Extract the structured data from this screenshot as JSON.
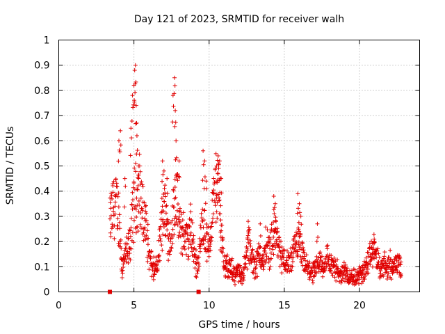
{
  "chart_data": {
    "type": "scatter",
    "title": "Day 121 of 2023, SRMTID for receiver walh",
    "xlabel": "GPS time / hours",
    "ylabel": "SRMTID / TECUs",
    "xlim": [
      0,
      24
    ],
    "ylim": [
      0,
      1
    ],
    "xticks": [
      0,
      5,
      10,
      15,
      20
    ],
    "xtick_labels": [
      "0",
      "5",
      "10",
      "15",
      "20"
    ],
    "yticks": [
      0,
      0.1,
      0.2,
      0.3,
      0.4,
      0.5,
      0.6,
      0.7,
      0.8,
      0.9,
      1
    ],
    "ytick_labels": [
      "0",
      "0.1",
      "0.2",
      "0.3",
      "0.4",
      "0.5",
      "0.6",
      "0.7",
      "0.8",
      "0.9",
      "1"
    ],
    "grid": true,
    "marker": "+",
    "color": "#e00000",
    "zero_markers_x": [
      3.4,
      9.3
    ],
    "trend": [
      [
        3.4,
        0.27
      ],
      [
        3.6,
        0.33
      ],
      [
        3.8,
        0.35
      ],
      [
        4.0,
        0.3
      ],
      [
        4.2,
        0.1
      ],
      [
        4.4,
        0.14
      ],
      [
        4.6,
        0.16
      ],
      [
        4.8,
        0.22
      ],
      [
        5.0,
        0.36
      ],
      [
        5.2,
        0.38
      ],
      [
        5.4,
        0.41
      ],
      [
        5.6,
        0.3
      ],
      [
        5.8,
        0.27
      ],
      [
        6.0,
        0.15
      ],
      [
        6.2,
        0.1
      ],
      [
        6.4,
        0.08
      ],
      [
        6.6,
        0.12
      ],
      [
        6.8,
        0.25
      ],
      [
        7.0,
        0.35
      ],
      [
        7.2,
        0.26
      ],
      [
        7.4,
        0.2
      ],
      [
        7.6,
        0.3
      ],
      [
        7.8,
        0.42
      ],
      [
        8.0,
        0.25
      ],
      [
        8.2,
        0.24
      ],
      [
        8.4,
        0.22
      ],
      [
        8.6,
        0.2
      ],
      [
        8.8,
        0.26
      ],
      [
        9.0,
        0.15
      ],
      [
        9.2,
        0.1
      ],
      [
        9.4,
        0.18
      ],
      [
        9.6,
        0.3
      ],
      [
        9.8,
        0.2
      ],
      [
        10.0,
        0.18
      ],
      [
        10.2,
        0.3
      ],
      [
        10.4,
        0.4
      ],
      [
        10.6,
        0.42
      ],
      [
        10.8,
        0.25
      ],
      [
        11.0,
        0.12
      ],
      [
        11.2,
        0.1
      ],
      [
        11.4,
        0.09
      ],
      [
        11.6,
        0.08
      ],
      [
        11.8,
        0.07
      ],
      [
        12.0,
        0.08
      ],
      [
        12.2,
        0.07
      ],
      [
        12.4,
        0.1
      ],
      [
        12.6,
        0.2
      ],
      [
        12.8,
        0.14
      ],
      [
        13.0,
        0.1
      ],
      [
        13.2,
        0.12
      ],
      [
        13.4,
        0.16
      ],
      [
        13.6,
        0.1
      ],
      [
        13.8,
        0.2
      ],
      [
        14.0,
        0.16
      ],
      [
        14.2,
        0.22
      ],
      [
        14.4,
        0.25
      ],
      [
        14.6,
        0.18
      ],
      [
        14.8,
        0.14
      ],
      [
        15.0,
        0.12
      ],
      [
        15.2,
        0.11
      ],
      [
        15.4,
        0.12
      ],
      [
        15.6,
        0.14
      ],
      [
        15.8,
        0.2
      ],
      [
        16.0,
        0.18
      ],
      [
        16.2,
        0.14
      ],
      [
        16.4,
        0.1
      ],
      [
        16.6,
        0.09
      ],
      [
        16.8,
        0.08
      ],
      [
        17.0,
        0.07
      ],
      [
        17.2,
        0.1
      ],
      [
        17.4,
        0.12
      ],
      [
        17.6,
        0.09
      ],
      [
        17.8,
        0.14
      ],
      [
        18.0,
        0.12
      ],
      [
        18.2,
        0.1
      ],
      [
        18.4,
        0.09
      ],
      [
        18.6,
        0.08
      ],
      [
        18.8,
        0.07
      ],
      [
        19.0,
        0.09
      ],
      [
        19.2,
        0.07
      ],
      [
        19.4,
        0.06
      ],
      [
        19.6,
        0.05
      ],
      [
        19.8,
        0.06
      ],
      [
        20.0,
        0.07
      ],
      [
        20.2,
        0.08
      ],
      [
        20.4,
        0.09
      ],
      [
        20.6,
        0.12
      ],
      [
        20.8,
        0.15
      ],
      [
        21.0,
        0.18
      ],
      [
        21.2,
        0.12
      ],
      [
        21.4,
        0.08
      ],
      [
        21.6,
        0.11
      ],
      [
        21.8,
        0.1
      ],
      [
        22.0,
        0.12
      ],
      [
        22.2,
        0.09
      ],
      [
        22.4,
        0.11
      ],
      [
        22.6,
        0.13
      ],
      [
        22.8,
        0.1
      ]
    ],
    "peaks": [
      [
        4.0,
        0.6
      ],
      [
        4.1,
        0.64
      ],
      [
        4.4,
        0.45
      ],
      [
        4.8,
        0.65
      ],
      [
        4.9,
        0.78
      ],
      [
        5.0,
        0.82
      ],
      [
        5.05,
        0.88
      ],
      [
        5.1,
        0.9
      ],
      [
        5.15,
        0.74
      ],
      [
        5.2,
        0.62
      ],
      [
        5.3,
        0.5
      ],
      [
        6.9,
        0.52
      ],
      [
        7.0,
        0.48
      ],
      [
        7.2,
        0.45
      ],
      [
        7.6,
        0.78
      ],
      [
        7.7,
        0.85
      ],
      [
        7.75,
        0.72
      ],
      [
        7.8,
        0.6
      ],
      [
        8.0,
        0.52
      ],
      [
        9.6,
        0.56
      ],
      [
        9.7,
        0.52
      ],
      [
        9.8,
        0.44
      ],
      [
        10.5,
        0.5
      ],
      [
        10.6,
        0.54
      ],
      [
        10.7,
        0.52
      ],
      [
        10.8,
        0.45
      ],
      [
        12.6,
        0.28
      ],
      [
        13.4,
        0.27
      ],
      [
        14.3,
        0.38
      ],
      [
        14.4,
        0.35
      ],
      [
        15.9,
        0.39
      ],
      [
        16.0,
        0.35
      ],
      [
        16.1,
        0.3
      ],
      [
        17.2,
        0.27
      ],
      [
        21.0,
        0.2
      ]
    ]
  }
}
